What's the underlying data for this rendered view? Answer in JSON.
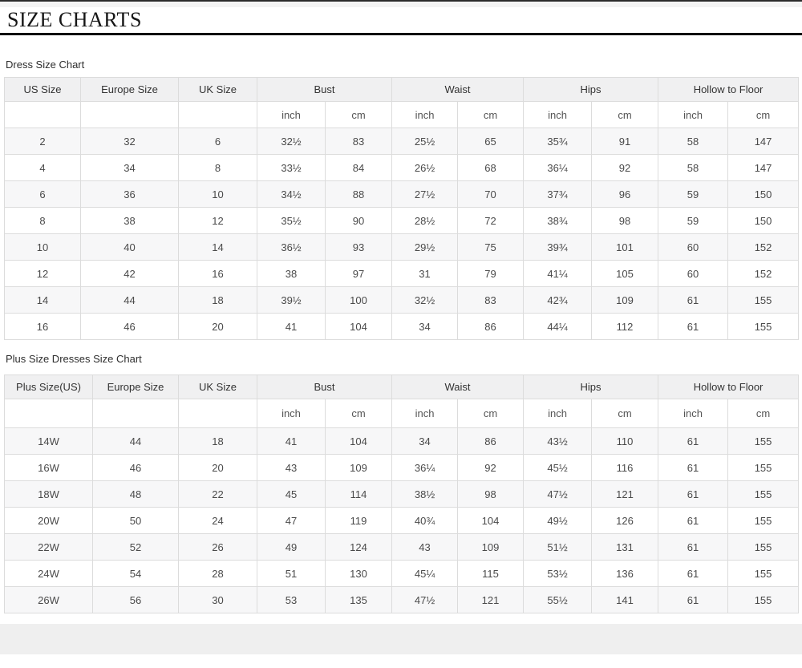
{
  "page": {
    "title": "SIZE CHARTS"
  },
  "colors": {
    "header_bg": "#f0f0f1",
    "row_alt_bg": "#f7f7f8",
    "table_border": "#dcdcdc",
    "divider": "#0d0d0d",
    "footer_strip": "#efefef",
    "text": "#4a4a4a"
  },
  "tables": [
    {
      "label": "Dress Size Chart",
      "single_columns": [
        "US Size",
        "Europe Size",
        "UK Size"
      ],
      "measure_columns": [
        "Bust",
        "Waist",
        "Hips",
        "Hollow to Floor"
      ],
      "unit_labels": [
        "inch",
        "cm"
      ],
      "rows": [
        [
          "2",
          "32",
          "6",
          "32½",
          "83",
          "25½",
          "65",
          "35¾",
          "91",
          "58",
          "147"
        ],
        [
          "4",
          "34",
          "8",
          "33½",
          "84",
          "26½",
          "68",
          "36¼",
          "92",
          "58",
          "147"
        ],
        [
          "6",
          "36",
          "10",
          "34½",
          "88",
          "27½",
          "70",
          "37¾",
          "96",
          "59",
          "150"
        ],
        [
          "8",
          "38",
          "12",
          "35½",
          "90",
          "28½",
          "72",
          "38¾",
          "98",
          "59",
          "150"
        ],
        [
          "10",
          "40",
          "14",
          "36½",
          "93",
          "29½",
          "75",
          "39¾",
          "101",
          "60",
          "152"
        ],
        [
          "12",
          "42",
          "16",
          "38",
          "97",
          "31",
          "79",
          "41¼",
          "105",
          "60",
          "152"
        ],
        [
          "14",
          "44",
          "18",
          "39½",
          "100",
          "32½",
          "83",
          "42¾",
          "109",
          "61",
          "155"
        ],
        [
          "16",
          "46",
          "20",
          "41",
          "104",
          "34",
          "86",
          "44¼",
          "112",
          "61",
          "155"
        ]
      ]
    },
    {
      "label": "Plus Size Dresses Size Chart",
      "single_columns": [
        "Plus Size(US)",
        "Europe Size",
        "UK Size"
      ],
      "measure_columns": [
        "Bust",
        "Waist",
        "Hips",
        "Hollow to Floor"
      ],
      "unit_labels": [
        "inch",
        "cm"
      ],
      "rows": [
        [
          "14W",
          "44",
          "18",
          "41",
          "104",
          "34",
          "86",
          "43½",
          "110",
          "61",
          "155"
        ],
        [
          "16W",
          "46",
          "20",
          "43",
          "109",
          "36¼",
          "92",
          "45½",
          "116",
          "61",
          "155"
        ],
        [
          "18W",
          "48",
          "22",
          "45",
          "114",
          "38½",
          "98",
          "47½",
          "121",
          "61",
          "155"
        ],
        [
          "20W",
          "50",
          "24",
          "47",
          "119",
          "40¾",
          "104",
          "49½",
          "126",
          "61",
          "155"
        ],
        [
          "22W",
          "52",
          "26",
          "49",
          "124",
          "43",
          "109",
          "51½",
          "131",
          "61",
          "155"
        ],
        [
          "24W",
          "54",
          "28",
          "51",
          "130",
          "45¼",
          "115",
          "53½",
          "136",
          "61",
          "155"
        ],
        [
          "26W",
          "56",
          "30",
          "53",
          "135",
          "47½",
          "121",
          "55½",
          "141",
          "61",
          "155"
        ]
      ]
    }
  ]
}
